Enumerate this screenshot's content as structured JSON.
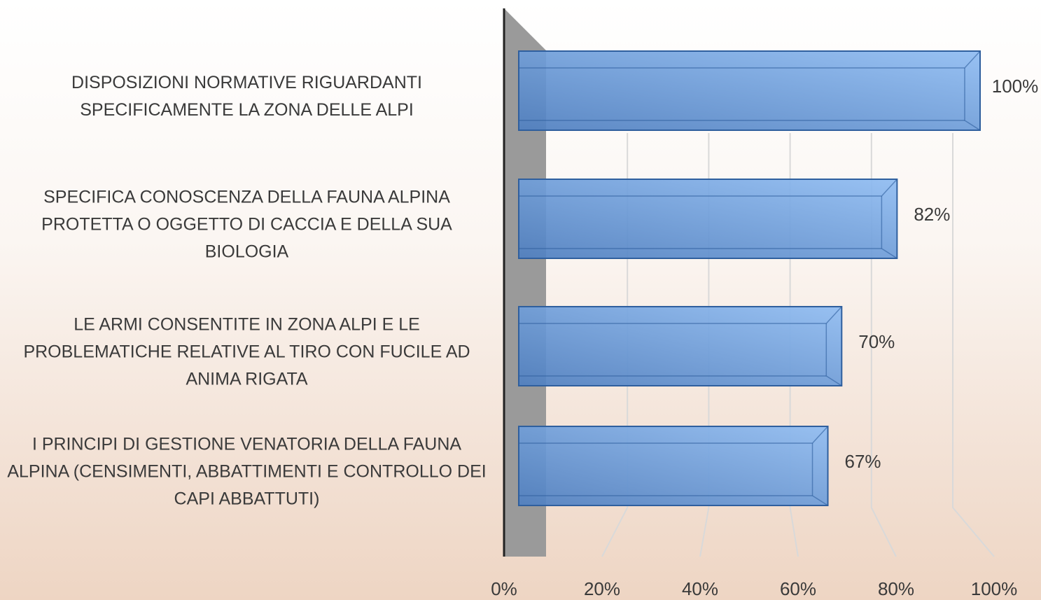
{
  "chart_data": {
    "type": "bar",
    "categories": [
      "DISPOSIZIONI NORMATIVE RIGUARDANTI SPECIFICAMENTE LA ZONA DELLE ALPI",
      "SPECIFICA CONOSCENZA DELLA FAUNA ALPINA PROTETTA O OGGETTO DI CACCIA E DELLA SUA BIOLOGIA",
      "LE ARMI CONSENTITE IN ZONA ALPI E LE PROBLEMATICHE RELATIVE AL TIRO CON FUCILE AD ANIMA RIGATA",
      "I PRINCIPI DI GESTIONE VENATORIA DELLA FAUNA ALPINA (CENSIMENTI, ABBATTIMENTI E CONTROLLO DEI CAPI ABBATTUTI)"
    ],
    "values": [
      100,
      82,
      70,
      67
    ],
    "value_labels": [
      "100%",
      "82%",
      "70%",
      "67%"
    ],
    "color": "#5b8fd6",
    "xlim": [
      0,
      100
    ],
    "xticks": [
      {
        "value": 0,
        "label": "0%"
      },
      {
        "value": 20,
        "label": "20%"
      },
      {
        "value": 40,
        "label": "40%"
      },
      {
        "value": 60,
        "label": "60%"
      },
      {
        "value": 80,
        "label": "80%"
      },
      {
        "value": 100,
        "label": "100%"
      }
    ],
    "grid": true
  }
}
